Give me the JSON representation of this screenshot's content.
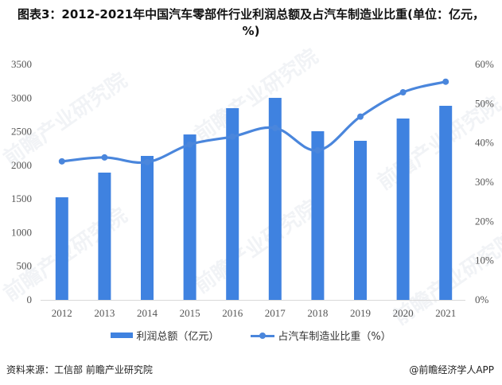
{
  "title": "图表3：2012-2021年中国汽车零部件行业利润总额及占汽车制造业比重(单位：亿元，%)",
  "colors": {
    "bar": "#3f82e0",
    "line": "#4a86dc",
    "axis": "#d9d9d9",
    "text": "#555555"
  },
  "legend": {
    "bar_label": "利润总额（亿元）",
    "line_label": "占汽车制造业比重（%）"
  },
  "footer": {
    "source": "资料来源：工信部 前瞻产业研究院",
    "credit": "@前瞻经济学人APP"
  },
  "watermark": "前瞻产业研究院",
  "chart_data": {
    "type": "bar",
    "title": "2012-2021年中国汽车零部件行业利润总额及占汽车制造业比重(单位：亿元，%)",
    "categories": [
      "2012",
      "2013",
      "2014",
      "2015",
      "2016",
      "2017",
      "2018",
      "2019",
      "2020",
      "2021"
    ],
    "series": [
      {
        "name": "利润总额（亿元）",
        "type": "bar",
        "axis": "left",
        "values": [
          1525,
          1892,
          2140,
          2459,
          2850,
          3003,
          2507,
          2365,
          2696,
          2885
        ]
      },
      {
        "name": "占汽车制造业比重（%）",
        "type": "line",
        "axis": "right",
        "smooth": true,
        "values": [
          35.3,
          36.3,
          35.1,
          39.6,
          41.6,
          43.8,
          38.1,
          46.7,
          52.9,
          55.6
        ]
      }
    ],
    "xlabel": "",
    "ylabel": "",
    "ylim": [
      0,
      3500
    ],
    "y_ticks": [
      "0",
      "500",
      "1000",
      "1500",
      "2000",
      "2500",
      "3000",
      "3500"
    ],
    "y2lim": [
      0,
      60
    ],
    "y2_ticks": [
      "0%",
      "10%",
      "20%",
      "30%",
      "40%",
      "50%",
      "60%"
    ],
    "grid": false,
    "legend_position": "bottom"
  }
}
